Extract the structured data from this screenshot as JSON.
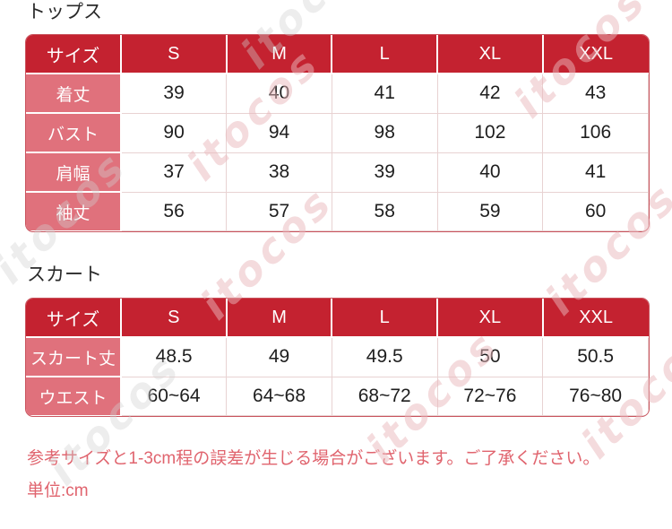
{
  "watermark_text": "itocos",
  "colors": {
    "header_bg": "#c42230",
    "label_bg": "#e0717c",
    "table_border": "#c9545e",
    "grid_line": "#e8d2d2",
    "note_text": "#e0646e",
    "title_text": "#2a2a2a"
  },
  "tables": [
    {
      "title": "トップス",
      "header": [
        "サイズ",
        "S",
        "M",
        "L",
        "XL",
        "XXL"
      ],
      "rows": [
        {
          "label": "着丈",
          "values": [
            "39",
            "40",
            "41",
            "42",
            "43"
          ]
        },
        {
          "label": "バスト",
          "values": [
            "90",
            "94",
            "98",
            "102",
            "106"
          ]
        },
        {
          "label": "肩幅",
          "values": [
            "37",
            "38",
            "39",
            "40",
            "41"
          ]
        },
        {
          "label": "袖丈",
          "values": [
            "56",
            "57",
            "58",
            "59",
            "60"
          ]
        }
      ]
    },
    {
      "title": "スカート",
      "header": [
        "サイズ",
        "S",
        "M",
        "L",
        "XL",
        "XXL"
      ],
      "rows": [
        {
          "label": "スカート丈",
          "values": [
            "48.5",
            "49",
            "49.5",
            "50",
            "50.5"
          ]
        },
        {
          "label": "ウエスト",
          "values": [
            "60~64",
            "64~68",
            "68~72",
            "72~76",
            "76~80"
          ]
        }
      ]
    }
  ],
  "notes": {
    "disclaimer": "参考サイズと1-3cm程の誤差が生じる場合がございます。ご了承ください。",
    "unit": "単位:cm"
  }
}
